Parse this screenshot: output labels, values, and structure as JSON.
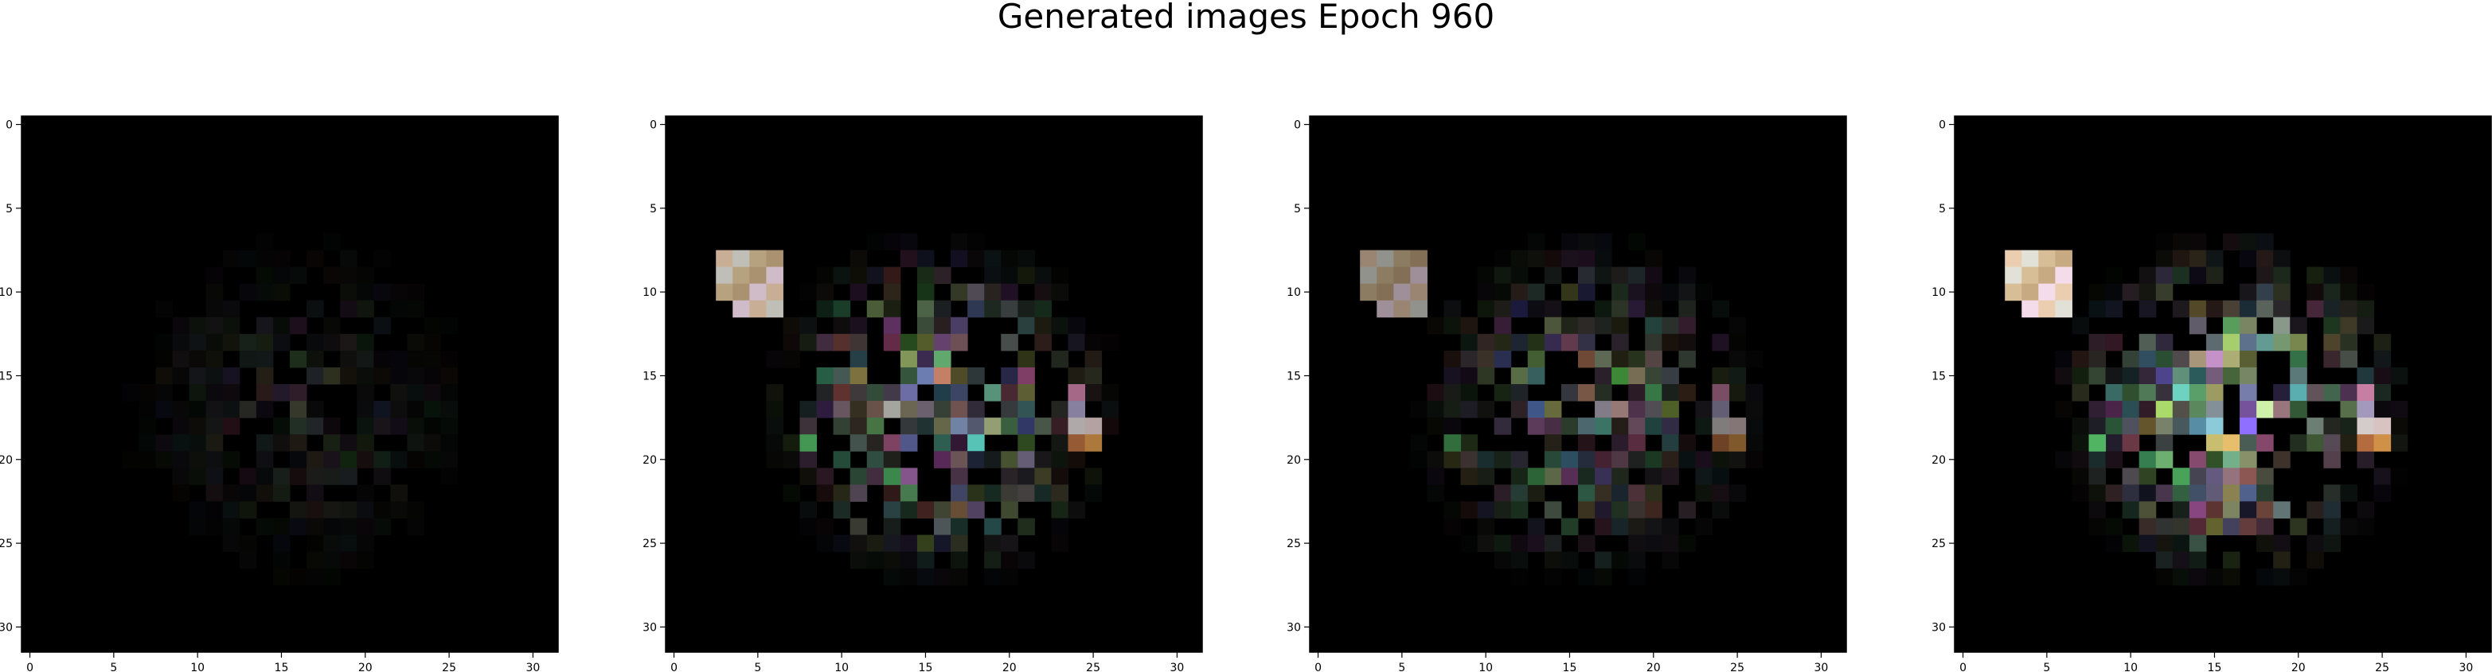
{
  "figure": {
    "title": "Generated images Epoch 960"
  },
  "chart_data": {
    "type": "heatmap",
    "title": "Generated images Epoch 960",
    "grid": false,
    "panels": [
      {
        "xlim": [
          0,
          31
        ],
        "ylim": [
          31,
          0
        ],
        "xticks": [
          0,
          5,
          10,
          15,
          20,
          25,
          30
        ],
        "yticks": [
          0,
          5,
          10,
          15,
          20,
          25,
          30
        ],
        "intensity": 0.18,
        "seed": 11
      },
      {
        "xlim": [
          0,
          31
        ],
        "ylim": [
          31,
          0
        ],
        "xticks": [
          0,
          5,
          10,
          15,
          20,
          25,
          30
        ],
        "yticks": [
          0,
          5,
          10,
          15,
          20,
          25,
          30
        ],
        "intensity": 0.75,
        "seed": 23
      },
      {
        "xlim": [
          0,
          31
        ],
        "ylim": [
          31,
          0
        ],
        "xticks": [
          0,
          5,
          10,
          15,
          20,
          25,
          30
        ],
        "yticks": [
          0,
          5,
          10,
          15,
          20,
          25,
          30
        ],
        "intensity": 0.55,
        "seed": 37
      },
      {
        "xlim": [
          0,
          31
        ],
        "ylim": [
          31,
          0
        ],
        "xticks": [
          0,
          5,
          10,
          15,
          20,
          25,
          30
        ],
        "yticks": [
          0,
          5,
          10,
          15,
          20,
          25,
          30
        ],
        "intensity": 0.9,
        "seed": 51
      }
    ]
  }
}
